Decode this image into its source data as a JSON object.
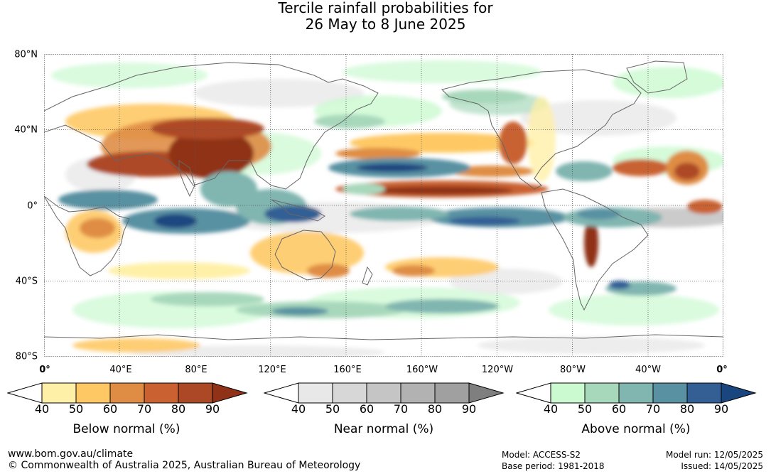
{
  "title": {
    "line1": "Tercile rainfall probabilities for",
    "line2": "26 May to 8 June 2025"
  },
  "map": {
    "lat_labels": [
      "80°N",
      "40°N",
      "0°",
      "40°S",
      "80°S"
    ],
    "lon_labels": [
      "0°",
      "40°E",
      "80°E",
      "120°E",
      "160°E",
      "160°W",
      "120°W",
      "80°W",
      "40°W",
      "0°"
    ]
  },
  "legends": [
    {
      "title": "Below normal (%)",
      "ticks": [
        "40",
        "50",
        "60",
        "70",
        "80",
        "90"
      ],
      "colors": [
        "#fff0a8",
        "#fec965",
        "#df8d45",
        "#c96230",
        "#ad4826",
        "#8f3218"
      ]
    },
    {
      "title": "Near normal (%)",
      "ticks": [
        "40",
        "50",
        "60",
        "70",
        "80",
        "90"
      ],
      "colors": [
        "#e8e8e8",
        "#d7d7d7",
        "#c5c5c5",
        "#b2b2b2",
        "#a0a0a0",
        "#7f7f7f"
      ]
    },
    {
      "title": "Above normal (%)",
      "ticks": [
        "40",
        "50",
        "60",
        "70",
        "80",
        "90"
      ],
      "colors": [
        "#cbfad0",
        "#a8d8bc",
        "#80b5b0",
        "#5991a2",
        "#335f95",
        "#1a4680"
      ]
    }
  ],
  "footer": {
    "website": "www.bom.gov.au/climate",
    "copyright": "© Commonwealth of Australia 2025, Australian Bureau of Meteorology",
    "model": "Model: ACCESS-S2",
    "base_period": "Base period: 1981-2018",
    "model_run": "Model run: 12/05/2025",
    "issued": "Issued: 14/05/2025"
  }
}
